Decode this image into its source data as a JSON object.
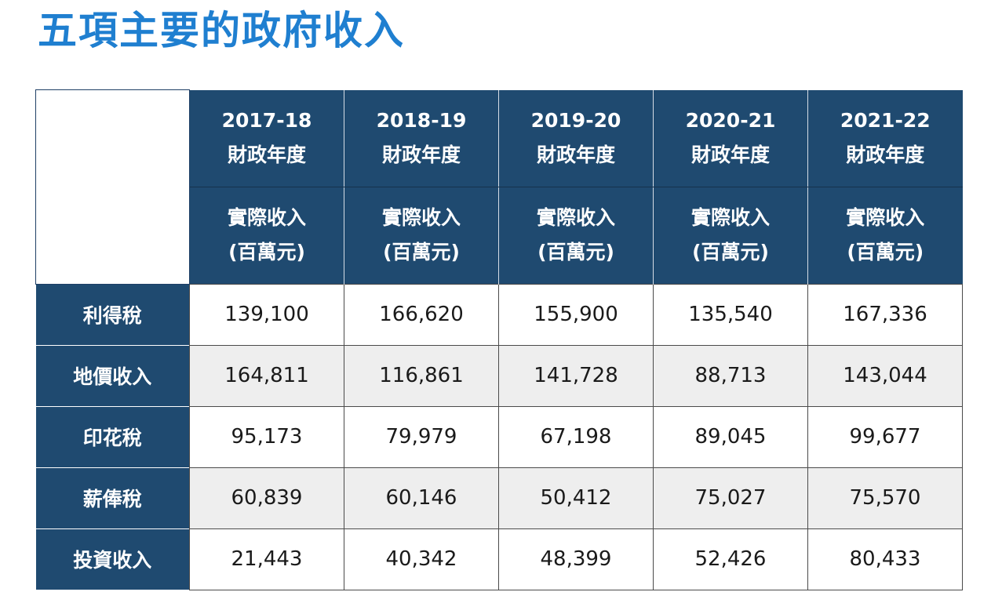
{
  "title": "五項主要的政府收入",
  "years": [
    {
      "year": "2017-18",
      "label": "財政年度"
    },
    {
      "year": "2018-19",
      "label": "財政年度"
    },
    {
      "year": "2019-20",
      "label": "財政年度"
    },
    {
      "year": "2020-21",
      "label": "財政年度"
    },
    {
      "year": "2021-22",
      "label": "財政年度"
    }
  ],
  "unit_line1": "實際收入",
  "unit_line2": "(百萬元)",
  "rows": [
    {
      "label": "利得稅",
      "values": [
        "139,100",
        "166,620",
        "155,900",
        "135,540",
        "167,336"
      ]
    },
    {
      "label": "地價收入",
      "values": [
        "164,811",
        "116,861",
        "141,728",
        "88,713",
        "143,044"
      ]
    },
    {
      "label": "印花稅",
      "values": [
        "95,173",
        "79,979",
        "67,198",
        "89,045",
        "99,677"
      ]
    },
    {
      "label": "薪俸稅",
      "values": [
        "60,839",
        "60,146",
        "50,412",
        "75,027",
        "75,570"
      ]
    },
    {
      "label": "投資收入",
      "values": [
        "21,443",
        "40,342",
        "48,399",
        "52,426",
        "80,433"
      ]
    }
  ],
  "colors": {
    "title": "#1f7fd0",
    "header_bg": "#1f4a70",
    "stripe": "#eeeeee"
  }
}
